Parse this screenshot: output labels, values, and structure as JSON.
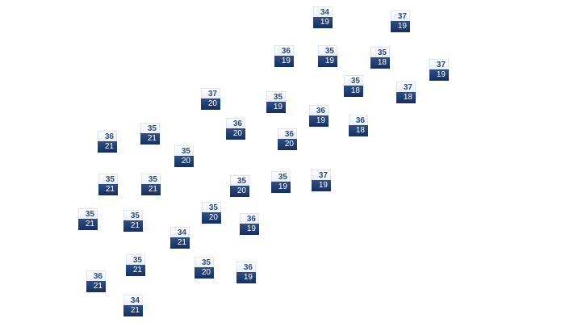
{
  "colors": {
    "high_bg": "#f2f6fb",
    "high_text": "#2a4a86",
    "low_bg": "#1f3a6e",
    "low_text": "#ffffff"
  },
  "markers": [
    {
      "high": "34",
      "low": "19"
    },
    {
      "high": "37",
      "low": "19"
    },
    {
      "high": "36",
      "low": "19"
    },
    {
      "high": "35",
      "low": "19"
    },
    {
      "high": "35",
      "low": "18"
    },
    {
      "high": "37",
      "low": "19"
    },
    {
      "high": "35",
      "low": "18"
    },
    {
      "high": "37",
      "low": "18"
    },
    {
      "high": "37",
      "low": "20"
    },
    {
      "high": "35",
      "low": "19"
    },
    {
      "high": "36",
      "low": "19"
    },
    {
      "high": "36",
      "low": "18"
    },
    {
      "high": "36",
      "low": "20"
    },
    {
      "high": "36",
      "low": "20"
    },
    {
      "high": "36",
      "low": "21"
    },
    {
      "high": "35",
      "low": "21"
    },
    {
      "high": "35",
      "low": "20"
    },
    {
      "high": "35",
      "low": "21"
    },
    {
      "high": "35",
      "low": "21"
    },
    {
      "high": "35",
      "low": "20"
    },
    {
      "high": "35",
      "low": "19"
    },
    {
      "high": "37",
      "low": "19"
    },
    {
      "high": "35",
      "low": "20"
    },
    {
      "high": "36",
      "low": "19"
    },
    {
      "high": "35",
      "low": "21"
    },
    {
      "high": "35",
      "low": "21"
    },
    {
      "high": "34",
      "low": "21"
    },
    {
      "high": "35",
      "low": "21"
    },
    {
      "high": "35",
      "low": "20"
    },
    {
      "high": "36",
      "low": "19"
    },
    {
      "high": "36",
      "low": "21"
    },
    {
      "high": "34",
      "low": "21"
    }
  ]
}
